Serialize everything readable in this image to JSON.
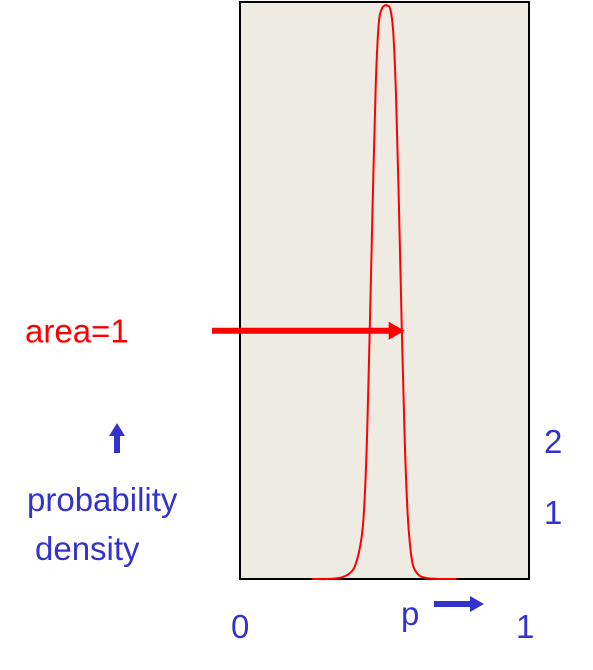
{
  "colors": {
    "curve": "#ff0000",
    "annotation": "#ff0000",
    "axis_text": "#3333cc",
    "plot_bg": "#eeebe2",
    "frame": "#000000"
  },
  "chart_data": {
    "type": "line",
    "xlim": [
      0,
      1
    ],
    "ylim": [
      0,
      7.9
    ],
    "x_tick_labels": {
      "min": "0",
      "max": "1"
    },
    "y_tick_labels": [
      "1",
      "2"
    ],
    "y_ticks": [
      1,
      2
    ],
    "xlabel": "p",
    "ylabel": "probability\ndensity",
    "ylabel_lines": [
      "probability",
      "density"
    ],
    "annotation": {
      "text": "area=1",
      "points_to_x": 0.57,
      "points_to_y": 3.4
    },
    "series": [
      {
        "x": [
          0.25,
          0.3,
          0.35,
          0.38,
          0.4,
          0.42,
          0.43,
          0.44,
          0.45,
          0.46,
          0.47,
          0.48,
          0.49,
          0.5,
          0.51,
          0.52,
          0.53,
          0.54,
          0.55,
          0.56,
          0.57,
          0.58,
          0.59,
          0.6,
          0.62,
          0.65,
          0.7,
          0.75
        ],
        "y": [
          0,
          0,
          0.02,
          0.08,
          0.2,
          0.55,
          1.0,
          2.0,
          3.6,
          5.3,
          6.8,
          7.6,
          7.8,
          7.85,
          7.85,
          7.8,
          7.5,
          6.6,
          5.1,
          3.4,
          1.9,
          0.9,
          0.4,
          0.17,
          0.05,
          0.01,
          0,
          0
        ]
      }
    ]
  }
}
